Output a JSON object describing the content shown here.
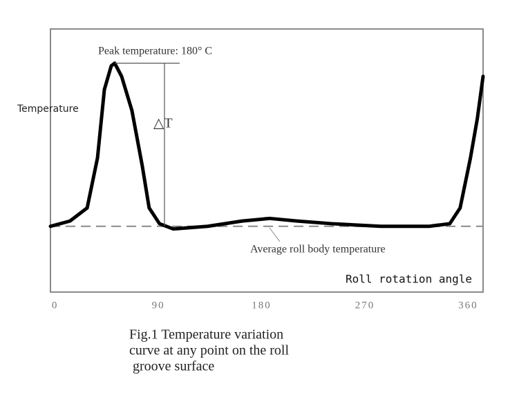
{
  "chart_data": {
    "type": "line",
    "y_label": "Temperature",
    "x_label": "Roll rotation angle",
    "annotations": {
      "peak": "Peak temperature: 180° C",
      "delta": "△T",
      "average": "Average roll body temperature"
    },
    "caption": [
      "Fig.1 Temperature variation",
      "curve at any point on the roll",
      " groove surface"
    ],
    "x": [
      -4,
      13,
      28,
      37,
      43,
      49,
      52,
      58,
      67,
      76,
      82,
      91,
      103,
      133,
      163,
      187,
      211,
      241,
      284,
      326,
      344,
      353,
      362,
      368,
      373
    ],
    "series": [
      {
        "name": "Temperature",
        "color": "#000000",
        "values": [
          25,
          27,
          32,
          51,
          77,
          86,
          87,
          82,
          69,
          48,
          32,
          26,
          24,
          25,
          27,
          28,
          27,
          26,
          25,
          25,
          26,
          32,
          51,
          66,
          82
        ]
      }
    ],
    "average": 25,
    "xlim": [
      -4,
      373
    ],
    "ylim": [
      0,
      100
    ],
    "xticks": [
      0,
      90,
      180,
      270,
      360
    ]
  }
}
